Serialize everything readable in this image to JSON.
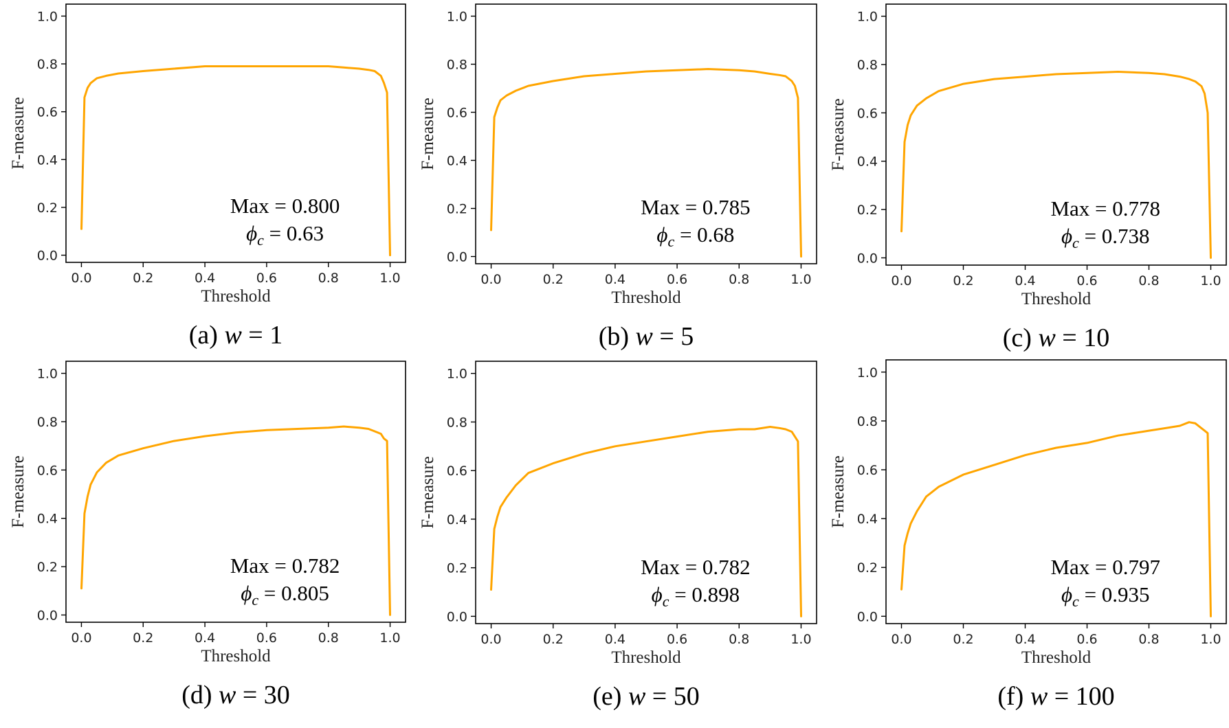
{
  "colors": {
    "series": "#FFA500",
    "axis": "#000000"
  },
  "chart_data": [
    {
      "type": "line",
      "caption": {
        "prefix": "(a) ",
        "var": "w",
        "rest": " = 1"
      },
      "xlabel": "Threshold",
      "ylabel": "F-measure",
      "xlim": [
        -0.05,
        1.05
      ],
      "ylim": [
        -0.03,
        1.05
      ],
      "xticks": [
        "0.0",
        "0.2",
        "0.4",
        "0.6",
        "0.8",
        "1.0"
      ],
      "yticks": [
        "0.0",
        "0.2",
        "0.4",
        "0.6",
        "0.8",
        "1.0"
      ],
      "annotation": {
        "max_text": "Max = 0.800",
        "phi_sym": "ϕ",
        "phi_sub": "c",
        "phi_value": " = 0.63"
      },
      "x": [
        0,
        0.01,
        0.02,
        0.03,
        0.05,
        0.08,
        0.12,
        0.2,
        0.3,
        0.4,
        0.5,
        0.6,
        0.7,
        0.8,
        0.85,
        0.9,
        0.93,
        0.95,
        0.97,
        0.98,
        0.99,
        1.0
      ],
      "y": [
        0.11,
        0.66,
        0.7,
        0.72,
        0.74,
        0.75,
        0.76,
        0.77,
        0.78,
        0.79,
        0.79,
        0.79,
        0.79,
        0.79,
        0.785,
        0.78,
        0.775,
        0.77,
        0.75,
        0.72,
        0.68,
        0.0
      ]
    },
    {
      "type": "line",
      "caption": {
        "prefix": "(b) ",
        "var": "w",
        "rest": " = 5"
      },
      "xlabel": "Threshold",
      "ylabel": "F-measure",
      "xlim": [
        -0.05,
        1.05
      ],
      "ylim": [
        -0.03,
        1.05
      ],
      "xticks": [
        "0.0",
        "0.2",
        "0.4",
        "0.6",
        "0.8",
        "1.0"
      ],
      "yticks": [
        "0.0",
        "0.2",
        "0.4",
        "0.6",
        "0.8",
        "1.0"
      ],
      "annotation": {
        "max_text": "Max = 0.785",
        "phi_sym": "ϕ",
        "phi_sub": "c",
        "phi_value": " = 0.68"
      },
      "x": [
        0,
        0.01,
        0.02,
        0.03,
        0.05,
        0.08,
        0.12,
        0.2,
        0.3,
        0.4,
        0.5,
        0.6,
        0.7,
        0.8,
        0.85,
        0.9,
        0.93,
        0.95,
        0.97,
        0.98,
        0.99,
        1.0
      ],
      "y": [
        0.11,
        0.58,
        0.62,
        0.65,
        0.67,
        0.69,
        0.71,
        0.73,
        0.75,
        0.76,
        0.77,
        0.775,
        0.78,
        0.775,
        0.77,
        0.76,
        0.755,
        0.75,
        0.73,
        0.71,
        0.66,
        0.0
      ]
    },
    {
      "type": "line",
      "caption": {
        "prefix": "(c) ",
        "var": "w",
        "rest": " = 10"
      },
      "xlabel": "Threshold",
      "ylabel": "F-measure",
      "xlim": [
        -0.05,
        1.05
      ],
      "ylim": [
        -0.03,
        1.05
      ],
      "xticks": [
        "0.0",
        "0.2",
        "0.4",
        "0.6",
        "0.8",
        "1.0"
      ],
      "yticks": [
        "0.0",
        "0.2",
        "0.4",
        "0.6",
        "0.8",
        "1.0"
      ],
      "annotation": {
        "max_text": "Max = 0.778",
        "phi_sym": "ϕ",
        "phi_sub": "c",
        "phi_value": " = 0.738"
      },
      "x": [
        0,
        0.01,
        0.02,
        0.03,
        0.05,
        0.08,
        0.12,
        0.2,
        0.3,
        0.4,
        0.5,
        0.6,
        0.7,
        0.8,
        0.85,
        0.9,
        0.93,
        0.95,
        0.97,
        0.98,
        0.99,
        1.0
      ],
      "y": [
        0.11,
        0.48,
        0.55,
        0.59,
        0.63,
        0.66,
        0.69,
        0.72,
        0.74,
        0.75,
        0.76,
        0.765,
        0.77,
        0.765,
        0.76,
        0.75,
        0.74,
        0.73,
        0.71,
        0.68,
        0.6,
        0.0
      ]
    },
    {
      "type": "line",
      "caption": {
        "prefix": "(d) ",
        "var": "w",
        "rest": " = 30"
      },
      "xlabel": "Threshold",
      "ylabel": "F-measure",
      "xlim": [
        -0.05,
        1.05
      ],
      "ylim": [
        -0.03,
        1.05
      ],
      "xticks": [
        "0.0",
        "0.2",
        "0.4",
        "0.6",
        "0.8",
        "1.0"
      ],
      "yticks": [
        "0.0",
        "0.2",
        "0.4",
        "0.6",
        "0.8",
        "1.0"
      ],
      "annotation": {
        "max_text": "Max = 0.782",
        "phi_sym": "ϕ",
        "phi_sub": "c",
        "phi_value": " = 0.805"
      },
      "x": [
        0,
        0.01,
        0.02,
        0.03,
        0.05,
        0.08,
        0.12,
        0.2,
        0.3,
        0.4,
        0.5,
        0.6,
        0.7,
        0.8,
        0.85,
        0.9,
        0.93,
        0.95,
        0.97,
        0.98,
        0.99,
        1.0
      ],
      "y": [
        0.11,
        0.42,
        0.49,
        0.54,
        0.59,
        0.63,
        0.66,
        0.69,
        0.72,
        0.74,
        0.755,
        0.765,
        0.77,
        0.775,
        0.78,
        0.775,
        0.77,
        0.76,
        0.75,
        0.73,
        0.72,
        0.0
      ]
    },
    {
      "type": "line",
      "caption": {
        "prefix": "(e) ",
        "var": "w",
        "rest": " = 50"
      },
      "xlabel": "Threshold",
      "ylabel": "F-measure",
      "xlim": [
        -0.05,
        1.05
      ],
      "ylim": [
        -0.03,
        1.05
      ],
      "xticks": [
        "0.0",
        "0.2",
        "0.4",
        "0.6",
        "0.8",
        "1.0"
      ],
      "yticks": [
        "0.0",
        "0.2",
        "0.4",
        "0.6",
        "0.8",
        "1.0"
      ],
      "annotation": {
        "max_text": "Max = 0.782",
        "phi_sym": "ϕ",
        "phi_sub": "c",
        "phi_value": " = 0.898"
      },
      "x": [
        0,
        0.01,
        0.02,
        0.03,
        0.05,
        0.08,
        0.12,
        0.2,
        0.3,
        0.4,
        0.5,
        0.6,
        0.7,
        0.8,
        0.85,
        0.9,
        0.93,
        0.95,
        0.97,
        0.98,
        0.99,
        1.0
      ],
      "y": [
        0.11,
        0.36,
        0.41,
        0.45,
        0.49,
        0.54,
        0.59,
        0.63,
        0.67,
        0.7,
        0.72,
        0.74,
        0.76,
        0.77,
        0.77,
        0.78,
        0.775,
        0.77,
        0.76,
        0.74,
        0.72,
        0.0
      ]
    },
    {
      "type": "line",
      "caption": {
        "prefix": "(f) ",
        "var": "w",
        "rest": " = 100"
      },
      "xlabel": "Threshold",
      "ylabel": "F-measure",
      "xlim": [
        -0.05,
        1.05
      ],
      "ylim": [
        -0.03,
        1.05
      ],
      "xticks": [
        "0.0",
        "0.2",
        "0.4",
        "0.6",
        "0.8",
        "1.0"
      ],
      "yticks": [
        "0.0",
        "0.2",
        "0.4",
        "0.6",
        "0.8",
        "1.0"
      ],
      "annotation": {
        "max_text": "Max = 0.797",
        "phi_sym": "ϕ",
        "phi_sub": "c",
        "phi_value": " = 0.935"
      },
      "x": [
        0,
        0.01,
        0.02,
        0.03,
        0.05,
        0.08,
        0.12,
        0.2,
        0.3,
        0.4,
        0.5,
        0.6,
        0.7,
        0.8,
        0.85,
        0.9,
        0.93,
        0.95,
        0.97,
        0.98,
        0.99,
        1.0
      ],
      "y": [
        0.11,
        0.29,
        0.34,
        0.38,
        0.43,
        0.49,
        0.53,
        0.58,
        0.62,
        0.66,
        0.69,
        0.71,
        0.74,
        0.76,
        0.77,
        0.78,
        0.795,
        0.79,
        0.77,
        0.76,
        0.75,
        0.0
      ]
    }
  ]
}
